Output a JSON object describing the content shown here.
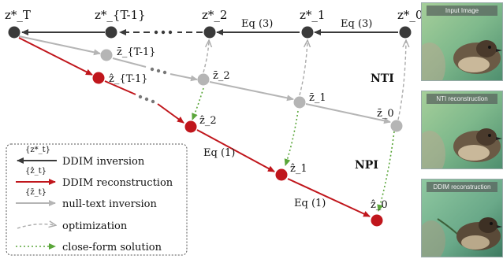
{
  "nodes": {
    "zT_star": "z*_T",
    "zT1_star": "z*_{T-1}",
    "z2_star": "z*_2",
    "z1_star": "z*_1",
    "z0_star": "z*_0",
    "zT1_bar": "z̄_{T-1}",
    "z2_bar": "z̄_2",
    "z1_bar": "z̄_1",
    "z0_bar": "z̄_0",
    "zT1_hat": "ẑ_{T-1}",
    "z2_hat": "ẑ_2",
    "z1_hat": "ẑ_1",
    "z0_hat": "ẑ_0"
  },
  "edge_labels": {
    "eq3_a": "Eq (3)",
    "eq3_b": "Eq (3)",
    "eq1_a": "Eq (1)",
    "eq1_b": "Eq (1)"
  },
  "region_labels": {
    "nti": "NTI",
    "npi": "NPI"
  },
  "legend": {
    "items": [
      {
        "symbol": "{z*_t}",
        "label": "DDIM inversion"
      },
      {
        "symbol": "{ẑ_t}",
        "label": "DDIM reconstruction"
      },
      {
        "symbol": "{z̄_t}",
        "label": "null-text inversion"
      },
      {
        "symbol": "",
        "label": "optimization"
      },
      {
        "symbol": "",
        "label": "close-form solution"
      }
    ]
  },
  "panels": [
    {
      "caption": "Input Image"
    },
    {
      "caption": "NTI reconstruction"
    },
    {
      "caption": "DDIM reconstruction"
    }
  ],
  "colors": {
    "dark": "#3a3a3a",
    "gray": "#b5b5b5",
    "red": "#c0161c",
    "green": "#5aa63a",
    "text": "#111111"
  }
}
